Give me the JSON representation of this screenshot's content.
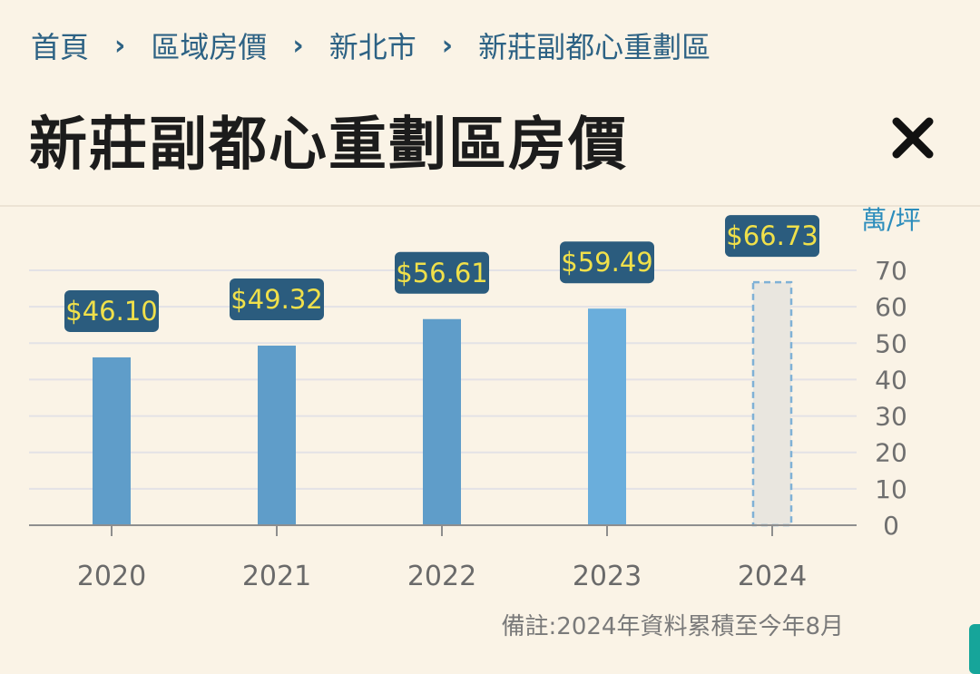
{
  "breadcrumb": {
    "items": [
      "首頁",
      "區域房價",
      "新北市",
      "新莊副都心重劃區"
    ],
    "separator": "›"
  },
  "title": "新莊副都心重劃區房價",
  "close_icon": "close-icon",
  "chart_data": {
    "type": "bar",
    "categories": [
      "2020",
      "2021",
      "2022",
      "2023",
      "2024"
    ],
    "values": [
      46.1,
      49.32,
      56.61,
      59.49,
      66.73
    ],
    "data_labels": [
      "$46.10",
      "$49.32",
      "$56.61",
      "$59.49",
      "$66.73"
    ],
    "ylabel": "萬/坪",
    "ylim": [
      0,
      70
    ],
    "y_ticks": [
      0,
      10,
      20,
      30,
      40,
      50,
      60,
      70
    ],
    "y_axis_side": "right",
    "grid": true,
    "legend": "none",
    "colors": {
      "bars": [
        "#5f9dc9",
        "#5f9dc9",
        "#5f9dc9",
        "#6aaedc",
        "#e9e6df"
      ],
      "last_bar_border": "#7fb1d6",
      "label_bg": "#2b5c7e",
      "label_text": "#f0e04a",
      "grid": "#e3e2e6",
      "axis": "#8e8e8e"
    }
  },
  "footnote": "備註:2024年資料累積至今年8月"
}
